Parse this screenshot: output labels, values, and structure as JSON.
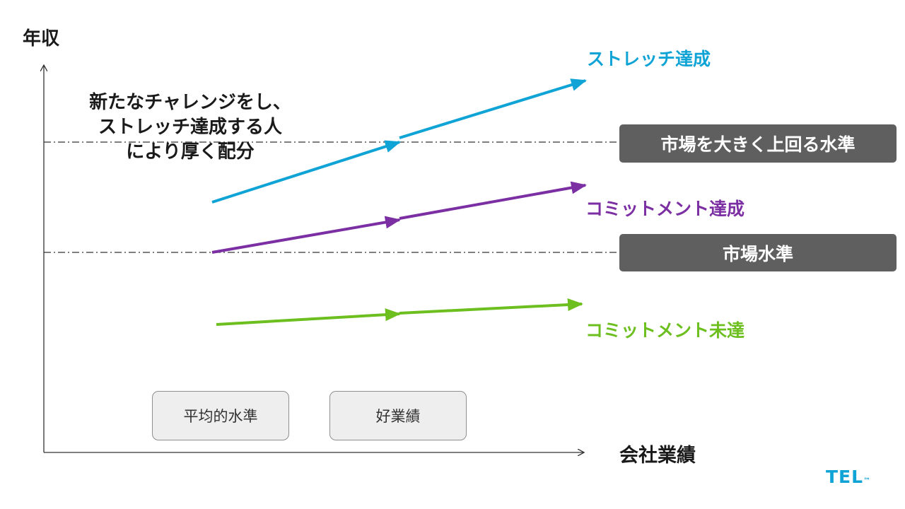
{
  "axes": {
    "y_label": "年収",
    "x_label": "会社業績"
  },
  "note": {
    "lines": [
      "新たなチャレンジをし、",
      "ストレッチ達成する人",
      "により厚く配分"
    ]
  },
  "levels": [
    {
      "label": "市場を大きく上回る水準"
    },
    {
      "label": "市場水準"
    }
  ],
  "series": [
    {
      "label": "ストレッチ達成",
      "color": "#0fa3d6"
    },
    {
      "label": "コミットメント達成",
      "color": "#7b2fa3"
    },
    {
      "label": "コミットメント未達",
      "color": "#6cbf1e"
    }
  ],
  "categories": [
    "平均的水準",
    "好業績"
  ],
  "logo": {
    "text": "TEL",
    "mark": "™",
    "color": "#0fa3d6"
  }
}
